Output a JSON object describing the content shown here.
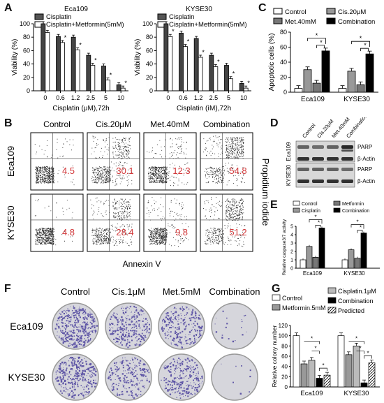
{
  "panels": {
    "A": {
      "letter": "A"
    },
    "B": {
      "letter": "B"
    },
    "C": {
      "letter": "C"
    },
    "D": {
      "letter": "D"
    },
    "E": {
      "letter": "E"
    },
    "F": {
      "letter": "F"
    },
    "G": {
      "letter": "G"
    }
  },
  "flow": {
    "col_labels": [
      "Control",
      "Cis.20μM",
      "Met.40mM",
      "Combination"
    ],
    "row_labels": [
      "Eca109",
      "KYSE30"
    ],
    "values": [
      [
        "4.5",
        "30.1",
        "12.3",
        "54.8"
      ],
      [
        "4.8",
        "28.4",
        "9.8",
        "51.2"
      ]
    ],
    "xlabel": "Annexin V",
    "ylabel": "Propidium  iodide",
    "value_color": "#d2383a"
  },
  "western": {
    "col_labels": [
      "Control",
      "Cis.20μM",
      "Met.40mM",
      "Combination"
    ],
    "row_groups": [
      "Eca109",
      "KYSE30"
    ],
    "band_labels": [
      "PARP",
      "β-Actin",
      "PARP",
      "β-Actin"
    ]
  },
  "colony": {
    "col_labels": [
      "Control",
      "Cis.1μM",
      "Met.5mM",
      "Combination"
    ],
    "row_labels": [
      "Eca109",
      "KYSE30"
    ]
  },
  "chart_data": [
    {
      "id": "A-left",
      "type": "bar",
      "title": "Eca109",
      "xlabel": "Cisplatin (μM),72h",
      "ylabel": "Viability (%)",
      "categories": [
        "0",
        "0.6",
        "1.2",
        "2.5",
        "5",
        "10"
      ],
      "ylim": [
        0,
        100
      ],
      "yticks": [
        "0",
        "20",
        "40",
        "60",
        "80",
        "100"
      ],
      "legend": [
        "Cisplatin",
        "Cisplatin+Metformin(5mM)"
      ],
      "series": [
        {
          "name": "Cisplatin",
          "values": [
            100,
            81,
            80,
            53,
            37,
            9
          ]
        },
        {
          "name": "Cisplatin+Metformin(5mM)",
          "values": [
            87,
            72,
            61,
            38,
            16,
            4
          ]
        }
      ],
      "sig": [
        "",
        "*",
        "*",
        "*",
        "*",
        "*"
      ]
    },
    {
      "id": "A-right",
      "type": "bar",
      "title": "KYSE30",
      "xlabel": "Cisplatin (ìM),72h",
      "ylabel": "Viability (%)",
      "categories": [
        "0",
        "0.6",
        "1.2",
        "2.5",
        "5",
        "10"
      ],
      "ylim": [
        0,
        100
      ],
      "yticks": [
        "0",
        "20",
        "40",
        "60",
        "80",
        "100"
      ],
      "legend": [
        "Cisplatin",
        "Cisplatin+Metformin(5mM)"
      ],
      "series": [
        {
          "name": "Cisplatin",
          "values": [
            100,
            86,
            78,
            53,
            38,
            11
          ]
        },
        {
          "name": "Cisplatin+Metformin(5mM)",
          "values": [
            81,
            66,
            50,
            36,
            18,
            4
          ]
        }
      ],
      "sig": [
        "*",
        "*",
        "*",
        "*",
        "*",
        "*"
      ]
    },
    {
      "id": "C",
      "type": "bar",
      "xlabel": "",
      "ylabel": "Apoptotic cells (%)",
      "categories": [
        "Eca109",
        "KYSE30"
      ],
      "ylim": [
        0,
        80
      ],
      "yticks": [
        "0",
        "20",
        "40",
        "60",
        "80"
      ],
      "legend": [
        "Control",
        "Met.40mM",
        "Cis.20μM",
        "Combination"
      ],
      "series": [
        {
          "name": "Control",
          "values": [
            5,
            5
          ]
        },
        {
          "name": "Cis.20μM",
          "values": [
            30,
            28
          ]
        },
        {
          "name": "Met.40mM",
          "values": [
            12,
            10
          ]
        },
        {
          "name": "Combination",
          "values": [
            55,
            51
          ]
        }
      ]
    },
    {
      "id": "E",
      "type": "bar",
      "xlabel": "",
      "ylabel": "Relative caspase3/7 activity",
      "categories": [
        "Eca109",
        "KYSE30"
      ],
      "ylim": [
        0,
        5
      ],
      "yticks": [
        "0",
        "1",
        "2",
        "3",
        "4",
        "5"
      ],
      "legend": [
        "Control",
        "Cisplatin",
        "Metformin",
        "Combination"
      ],
      "series": [
        {
          "name": "Control",
          "values": [
            1,
            1
          ]
        },
        {
          "name": "Cisplatin",
          "values": [
            2.6,
            2.2
          ]
        },
        {
          "name": "Metformin",
          "values": [
            1.3,
            1.2
          ]
        },
        {
          "name": "Combination",
          "values": [
            4.8,
            4.2
          ]
        }
      ]
    },
    {
      "id": "G",
      "type": "bar",
      "xlabel": "",
      "ylabel": "Relative colony number",
      "categories": [
        "Eca109",
        "KYSE30"
      ],
      "ylim": [
        0,
        120
      ],
      "yticks": [
        "0",
        "20",
        "40",
        "60",
        "80",
        "100",
        "120"
      ],
      "legend": [
        "Control",
        "Metformin.5mM",
        "Cisplatin.1μM",
        "Combination",
        "Predicted"
      ],
      "series": [
        {
          "name": "Control",
          "values": [
            100,
            100
          ]
        },
        {
          "name": "Metformin.5mM",
          "values": [
            45,
            63
          ]
        },
        {
          "name": "Cisplatin.1μM",
          "values": [
            52,
            80
          ]
        },
        {
          "name": "Combination",
          "values": [
            17,
            8
          ]
        },
        {
          "name": "Predicted",
          "values": [
            23,
            47
          ]
        }
      ]
    }
  ]
}
